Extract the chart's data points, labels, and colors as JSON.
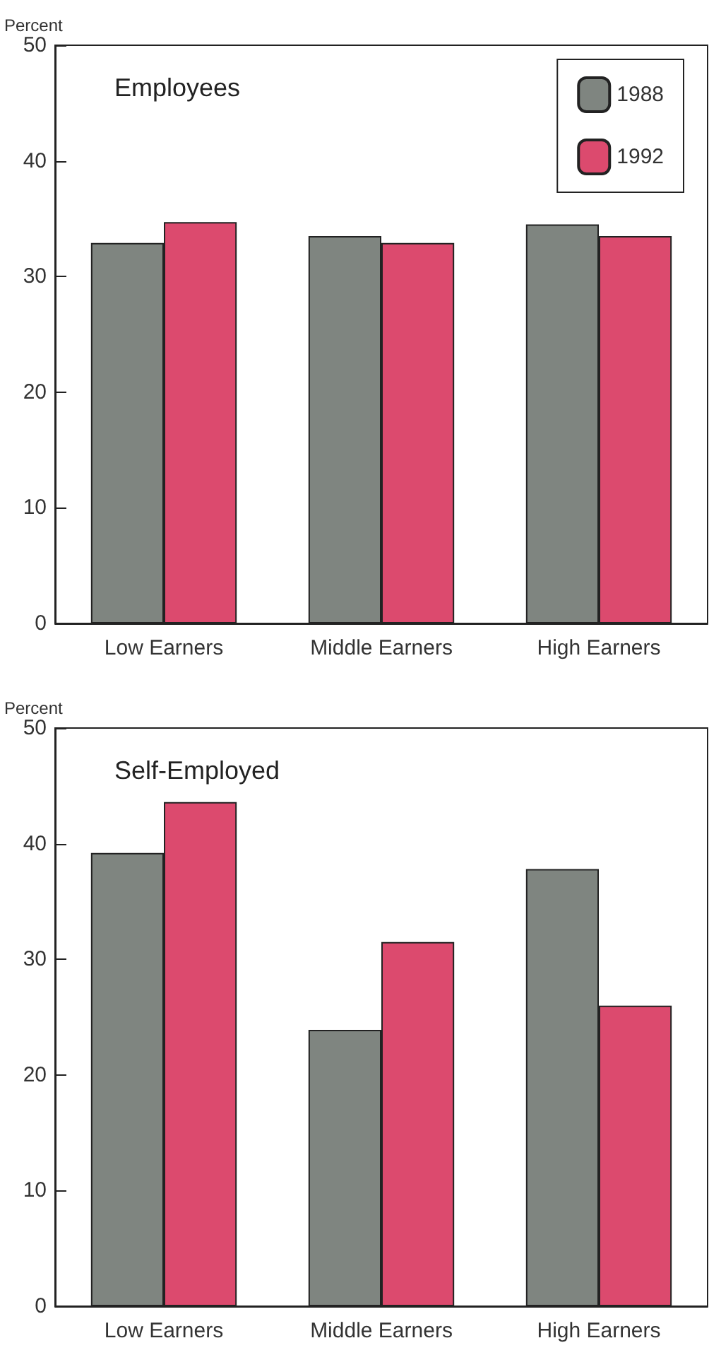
{
  "chart_data": [
    {
      "type": "bar",
      "title": "Employees",
      "ylabel": "Percent",
      "categories": [
        "Low Earners",
        "Middle Earners",
        "High Earners"
      ],
      "series": [
        {
          "name": "1988",
          "color": "#7f8580",
          "values": [
            32.9,
            33.5,
            34.5
          ]
        },
        {
          "name": "1992",
          "color": "#dc4a6e",
          "values": [
            34.7,
            32.9,
            33.5
          ]
        }
      ],
      "ylim": [
        0,
        50
      ],
      "yticks": [
        0,
        10,
        20,
        30,
        40,
        50
      ],
      "grid": false,
      "legend": "top right"
    },
    {
      "type": "bar",
      "title": "Self-Employed",
      "ylabel": "Percent",
      "categories": [
        "Low Earners",
        "Middle Earners",
        "High Earners"
      ],
      "series": [
        {
          "color": "#7f8580",
          "values": [
            39.2,
            23.9,
            37.8
          ]
        },
        {
          "color": "#dc4a6e",
          "values": [
            43.6,
            31.5,
            26.0
          ]
        }
      ],
      "ylim": [
        0,
        50
      ],
      "yticks": [
        0,
        10,
        20,
        30,
        40,
        50
      ],
      "grid": false,
      "legend": false
    }
  ]
}
